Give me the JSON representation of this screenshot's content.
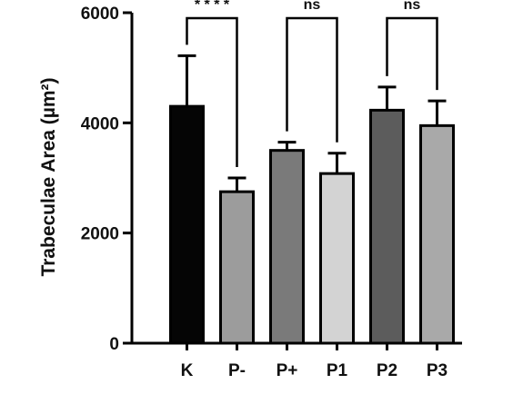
{
  "chart_data": {
    "type": "bar",
    "ylabel": "Trabeculae Area (µm²)",
    "xlabel": "",
    "ylim": [
      0,
      6000
    ],
    "yticks": [
      0,
      2000,
      4000,
      6000
    ],
    "grid": false,
    "categories": [
      "K",
      "P-",
      "P+",
      "P1",
      "P2",
      "P3"
    ],
    "values": [
      4300,
      2750,
      3500,
      3080,
      4230,
      3950
    ],
    "errors": [
      920,
      250,
      150,
      370,
      420,
      450
    ],
    "bar_colors": [
      "#050505",
      "#9c9c9c",
      "#7a7a7a",
      "#d3d3d3",
      "#5c5c5c",
      "#a9a9a9"
    ],
    "comparisons": [
      {
        "from": "K",
        "to": "P-",
        "label": "* * * *"
      },
      {
        "from": "P+",
        "to": "P1",
        "label": "ns"
      },
      {
        "from": "P2",
        "to": "P3",
        "label": "ns"
      }
    ]
  }
}
